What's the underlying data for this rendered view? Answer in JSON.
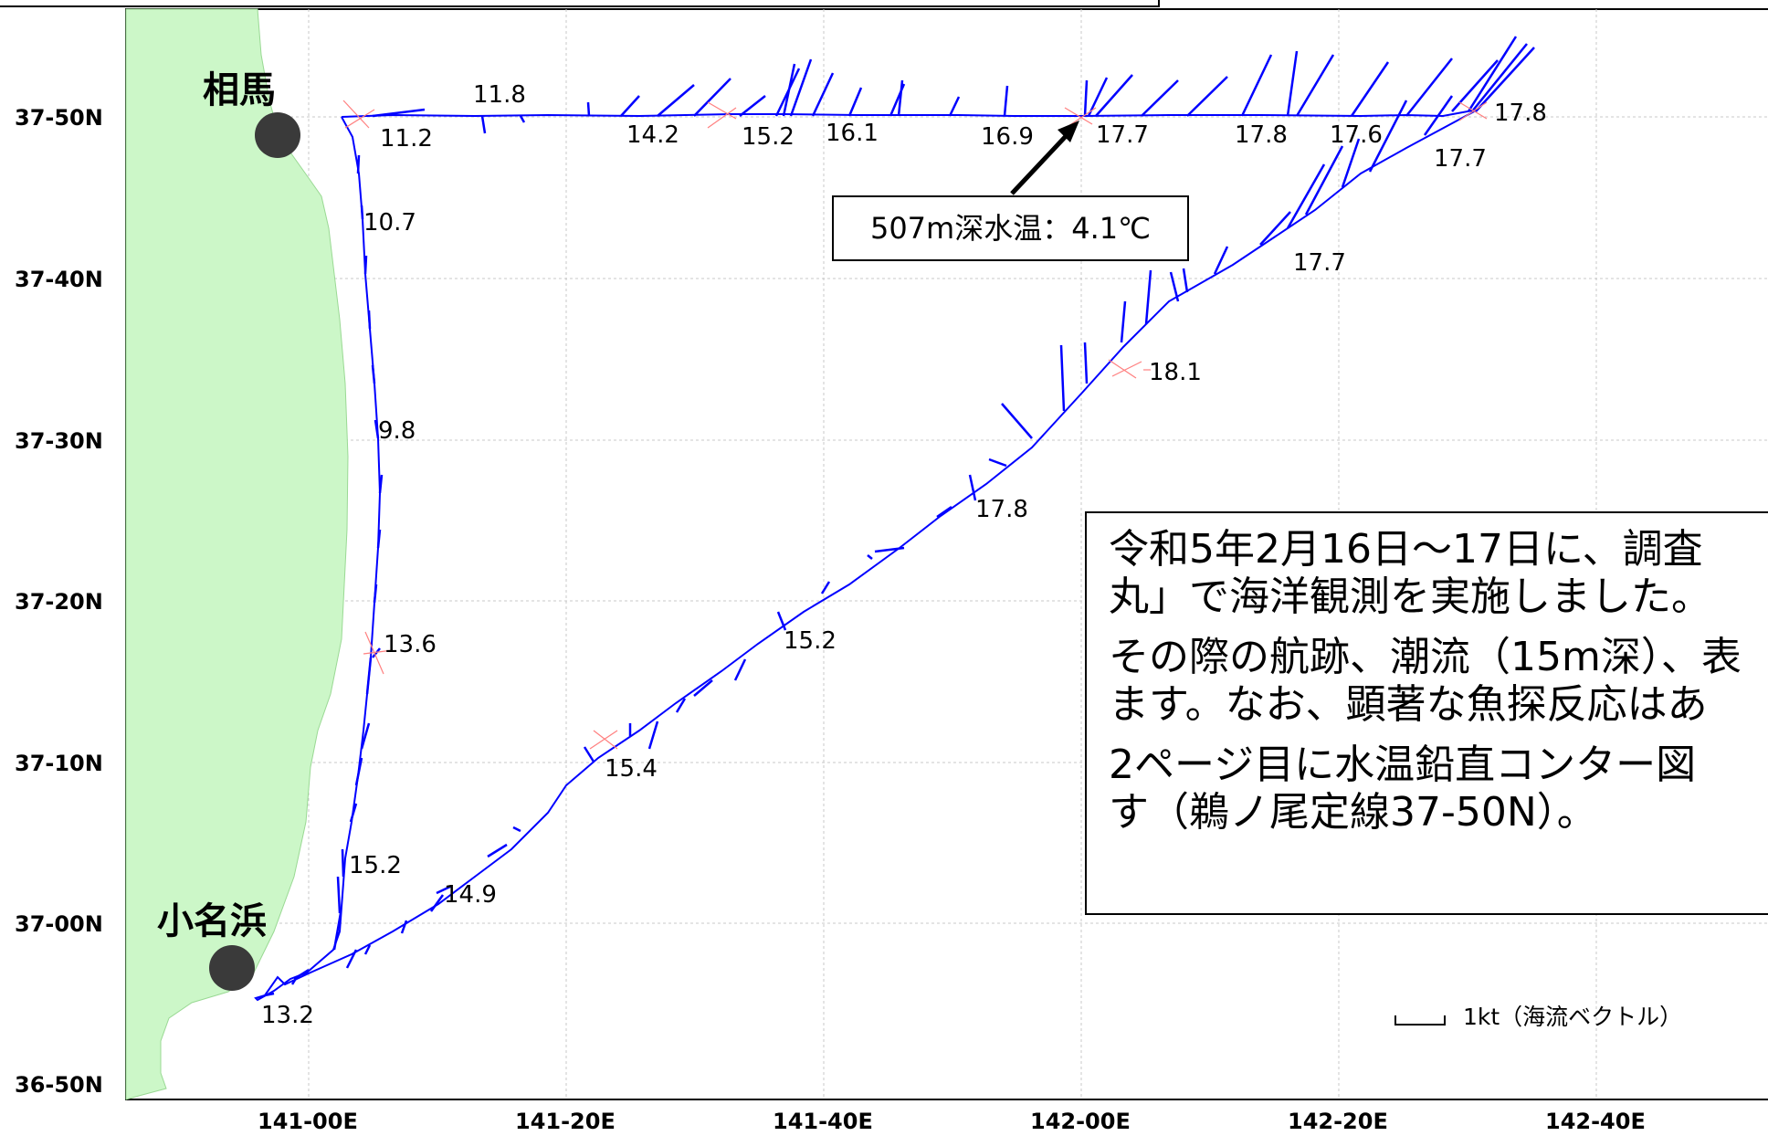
{
  "map": {
    "y_axis_labels": [
      "37-50N",
      "37-40N",
      "37-30N",
      "37-20N",
      "37-10N",
      "37-00N",
      "36-50N"
    ],
    "x_axis_labels": [
      "141-00E",
      "141-20E",
      "141-40E",
      "142-00E",
      "142-20E",
      "142-40E"
    ],
    "ports": {
      "soma": "相馬",
      "onahama": "小名浜"
    },
    "temperature_labels": [
      "11.8",
      "11.2",
      "14.2",
      "15.2",
      "16.1",
      "16.9",
      "17.7",
      "17.8",
      "17.6",
      "17.8",
      "17.7",
      "10.7",
      "17.7",
      "18.1",
      "9.8",
      "17.8",
      "13.6",
      "15.2",
      "15.4",
      "15.2",
      "14.9",
      "13.2"
    ],
    "colors": {
      "land": "#ccf7c8",
      "track": "#0000ff",
      "vectors": "#0000ff",
      "stations": "#ff8080",
      "grid": "#c8c8c8"
    },
    "callout": "507m深水温：4.1℃",
    "legend": "1kt（海流ベクトル）",
    "info": {
      "line1": "令和5年2月16日～17日に、調査",
      "line2": "丸」で海洋観測を実施しました。",
      "line3": "その際の航跡、潮流（15m深）、表",
      "line4": "ます。なお、顕著な魚探反応はあ",
      "line5": "2ページ目に水温鉛直コンター図",
      "line6": "す（鵜ノ尾定線37-50N）。"
    }
  }
}
